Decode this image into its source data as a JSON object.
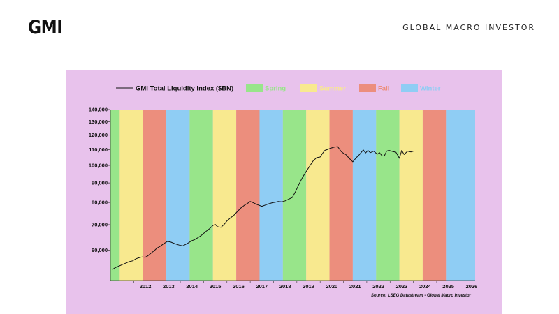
{
  "header": {
    "logo": "GMI",
    "brand": "GLOBAL MACRO INVESTOR"
  },
  "colors": {
    "panel_background": "#e8c2ec",
    "spring": "#98e58a",
    "summer": "#f8e98f",
    "fall": "#ec8e7d",
    "winter": "#8fcdf4",
    "line": "#111111"
  },
  "chart_data": {
    "type": "line",
    "legend_position": "top",
    "series": [
      {
        "name": "GMI Total Liquidity Index ($BN)",
        "x": [
          2011.1,
          2011.2,
          2011.35,
          2011.5,
          2011.65,
          2011.8,
          2011.95,
          2012.1,
          2012.2,
          2012.35,
          2012.5,
          2012.6,
          2012.75,
          2012.9,
          2013.0,
          2013.15,
          2013.3,
          2013.45,
          2013.6,
          2013.8,
          2013.95,
          2014.1,
          2014.3,
          2014.5,
          2014.6,
          2014.75,
          2014.9,
          2015.0,
          2015.1,
          2015.25,
          2015.4,
          2015.5,
          2015.6,
          2015.75,
          2015.9,
          2016.0,
          2016.15,
          2016.3,
          2016.45,
          2016.6,
          2016.75,
          2016.9,
          2017.0,
          2017.15,
          2017.3,
          2017.5,
          2017.65,
          2017.8,
          2017.95,
          2018.1,
          2018.2,
          2018.35,
          2018.5,
          2018.65,
          2018.8,
          2018.95,
          2019.1,
          2019.25,
          2019.4,
          2019.55,
          2019.7,
          2019.85,
          2020.0,
          2020.1,
          2020.2,
          2020.3,
          2020.45,
          2020.6,
          2020.75,
          2020.9,
          2021.0,
          2021.1,
          2021.25,
          2021.4,
          2021.55,
          2021.7,
          2021.85,
          2021.95,
          2022.05,
          2022.15,
          2022.3,
          2022.45,
          2022.55,
          2022.65,
          2022.75,
          2022.85,
          2022.95,
          2023.1,
          2023.25,
          2023.4,
          2023.5,
          2023.6,
          2023.75,
          2023.9,
          2024.0
        ],
        "values": [
          53500,
          54000,
          54500,
          55000,
          55500,
          56000,
          56300,
          57000,
          57300,
          57600,
          57500,
          58000,
          59000,
          60000,
          60800,
          61500,
          62500,
          63300,
          63000,
          62300,
          61900,
          61600,
          62500,
          63600,
          63900,
          64700,
          65600,
          66400,
          67200,
          68300,
          69700,
          70100,
          69100,
          68900,
          70300,
          71600,
          72900,
          74100,
          75800,
          77400,
          78700,
          79700,
          80500,
          79800,
          79000,
          78200,
          78800,
          79400,
          79900,
          80200,
          80500,
          80300,
          80800,
          81600,
          82400,
          85600,
          89600,
          93200,
          96400,
          99600,
          102800,
          104800,
          105200,
          107500,
          109500,
          110000,
          110900,
          111600,
          112000,
          108800,
          107600,
          106800,
          104300,
          102200,
          104800,
          107000,
          109800,
          107800,
          109500,
          108000,
          109000,
          107000,
          108000,
          106000,
          105800,
          109000,
          109500,
          108800,
          108300,
          104400,
          109500,
          106800,
          109000,
          108500,
          109000
        ]
      }
    ],
    "x_ticks": [
      "2012",
      "2013",
      "2014",
      "2015",
      "2016",
      "2017",
      "2018",
      "2019",
      "2020",
      "2021",
      "2022",
      "2023",
      "2024",
      "2025",
      "2026"
    ],
    "x_range": [
      2011,
      2026.65
    ],
    "y_scale": "log",
    "y_ticks": [
      60000,
      70000,
      80000,
      90000,
      100000,
      110000,
      120000,
      130000,
      140000
    ],
    "y_tick_labels": [
      "60,000",
      "70,000",
      "80,000",
      "90,000",
      "100,000",
      "110,000",
      "120,000",
      "130,000",
      "140,000"
    ],
    "y_range": [
      50000,
      140000
    ],
    "seasons": [
      {
        "name": "Spring",
        "start": 2011.0,
        "end": 2011.4
      },
      {
        "name": "Summer",
        "start": 2011.4,
        "end": 2012.4
      },
      {
        "name": "Fall",
        "start": 2012.4,
        "end": 2013.4
      },
      {
        "name": "Winter",
        "start": 2013.4,
        "end": 2014.4
      },
      {
        "name": "Spring",
        "start": 2014.4,
        "end": 2015.4
      },
      {
        "name": "Summer",
        "start": 2015.4,
        "end": 2016.4
      },
      {
        "name": "Fall",
        "start": 2016.4,
        "end": 2017.4
      },
      {
        "name": "Winter",
        "start": 2017.4,
        "end": 2018.4
      },
      {
        "name": "Spring",
        "start": 2018.4,
        "end": 2019.4
      },
      {
        "name": "Summer",
        "start": 2019.4,
        "end": 2020.4
      },
      {
        "name": "Fall",
        "start": 2020.4,
        "end": 2021.4
      },
      {
        "name": "Winter",
        "start": 2021.4,
        "end": 2022.4
      },
      {
        "name": "Spring",
        "start": 2022.4,
        "end": 2023.4
      },
      {
        "name": "Summer",
        "start": 2023.4,
        "end": 2024.4
      },
      {
        "name": "Fall",
        "start": 2024.4,
        "end": 2025.4
      },
      {
        "name": "Winter",
        "start": 2025.4,
        "end": 2026.65
      }
    ],
    "legend": [
      {
        "label": "GMI Total Liquidity Index ($BN)",
        "kind": "line"
      },
      {
        "label": "Spring",
        "kind": "swatch",
        "season": "Spring"
      },
      {
        "label": "Summer",
        "kind": "swatch",
        "season": "Summer"
      },
      {
        "label": "Fall",
        "kind": "swatch",
        "season": "Fall"
      },
      {
        "label": "Winter",
        "kind": "swatch",
        "season": "Winter"
      }
    ],
    "source": "Source: LSEG Datastream - Global Macro Investor"
  }
}
